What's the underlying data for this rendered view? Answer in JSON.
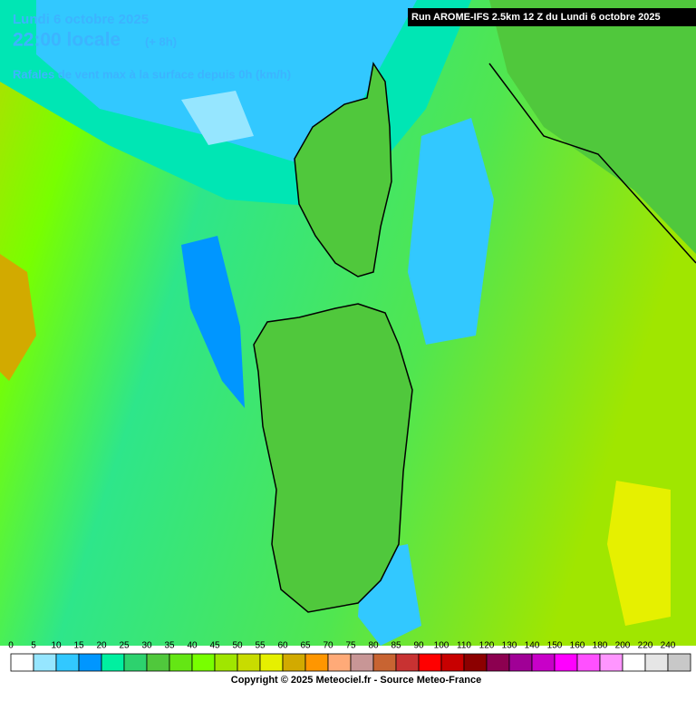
{
  "header": {
    "date": "Lundi 6 octobre 2025",
    "time": "22:00 locale",
    "offset": "(+ 8h)",
    "subtitle": "Rafales de vent max à la surface depuis 0h (km/h)",
    "run": "Run AROME-IFS 2.5km 12 Z du Lundi 6 octobre 2025"
  },
  "legend": {
    "values": [
      0,
      5,
      10,
      15,
      20,
      25,
      30,
      35,
      40,
      45,
      50,
      55,
      60,
      65,
      70,
      75,
      80,
      85,
      90,
      100,
      110,
      120,
      130,
      140,
      150,
      160,
      180,
      200,
      220,
      240
    ],
    "colors": [
      "#ffffff",
      "#96e6ff",
      "#32c8ff",
      "#0096ff",
      "#00f0a0",
      "#2dd26e",
      "#50c83c",
      "#64e614",
      "#78ff00",
      "#a0e600",
      "#c8dc00",
      "#e6f000",
      "#d2aa00",
      "#ff9600",
      "#ffaa78",
      "#c89696",
      "#c86432",
      "#c83232",
      "#ff0000",
      "#c80000",
      "#8c0000",
      "#8c0050",
      "#a00096",
      "#c800c8",
      "#ff00ff",
      "#ff50ff",
      "#ff96ff",
      "#ffffff",
      "#e6e6e6",
      "#c8c8c8"
    ]
  },
  "footer": {
    "copyright": "Copyright © 2025 Meteociel.fr - Source Meteo-France"
  }
}
